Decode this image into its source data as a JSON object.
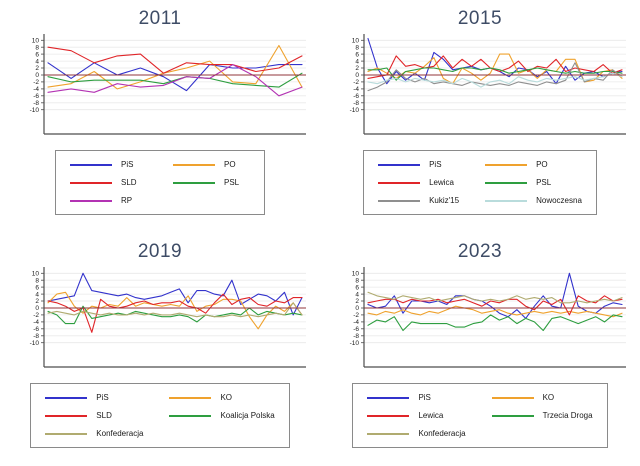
{
  "page": {
    "background": "#ffffff"
  },
  "style": {
    "title_color": "#3e4c66",
    "axis_color": "#4d4d4d",
    "grid_color": "#e9e9e9",
    "tick_label_color": "#1a1a1a",
    "zero_line_color": "#90353b",
    "legend_border_color": "#8a8a8a"
  },
  "chart_data": [
    {
      "type": "line",
      "title": "2011",
      "ylim": [
        -10,
        10
      ],
      "yticks": [
        10,
        8,
        6,
        4,
        2,
        0,
        -2,
        -4,
        -6,
        -8,
        -10
      ],
      "xlabel": "",
      "ylabel": "",
      "x_tick_labels_visible": false,
      "grid": true,
      "zero_reference_line": 0,
      "legend_position": "bottom",
      "legend_columns": 2,
      "series": [
        {
          "name": "PiS",
          "color": "#3333cc",
          "values": [
            3.5,
            -1,
            3.5,
            0,
            2,
            -0.5,
            -4.5,
            3,
            2,
            2,
            3,
            3
          ]
        },
        {
          "name": "PO",
          "color": "#efa22e",
          "values": [
            -3.5,
            -2.5,
            1,
            -4,
            -2,
            0.5,
            2,
            4,
            -2,
            -2.5,
            8.5,
            -3.5
          ]
        },
        {
          "name": "SLD",
          "color": "#e02529",
          "values": [
            8,
            7,
            3.5,
            5.5,
            6,
            0.5,
            3.5,
            3,
            3,
            1,
            2,
            5.5
          ]
        },
        {
          "name": "PSL",
          "color": "#2e9e40",
          "values": [
            -0.5,
            -2,
            -1.5,
            -1.5,
            -1.5,
            -2.5,
            -0.5,
            -1,
            -2.5,
            -3,
            -3.5,
            0.5
          ]
        },
        {
          "name": "RP",
          "color": "#b333b3",
          "values": [
            -5,
            -4,
            -5,
            -2.5,
            -3.5,
            -3,
            -0.5,
            -1,
            3,
            -0.5,
            -6,
            -3.5
          ]
        }
      ]
    },
    {
      "type": "line",
      "title": "2015",
      "ylim": [
        -10,
        10
      ],
      "yticks": [
        10,
        8,
        6,
        4,
        2,
        0,
        -2,
        -4,
        -6,
        -8,
        -10
      ],
      "xlabel": "",
      "ylabel": "",
      "x_tick_labels_visible": false,
      "grid": true,
      "zero_reference_line": 0,
      "legend_position": "bottom",
      "legend_columns": 2,
      "series": [
        {
          "name": "PiS",
          "color": "#3333cc",
          "values": [
            10.5,
            2,
            -2.5,
            1,
            -1.5,
            0.5,
            -1.5,
            6.5,
            4.5,
            1.5,
            2,
            2.5,
            1.5,
            2,
            1,
            -0.5,
            2,
            1.5,
            -0.5,
            1,
            -2.5,
            2.5,
            -1.5,
            0.5,
            1,
            -0.5,
            0.5,
            1
          ]
        },
        {
          "name": "PO",
          "color": "#efa22e",
          "values": [
            1,
            2,
            0.5,
            -1,
            1,
            0.5,
            2.5,
            5,
            -1,
            -2.5,
            2,
            0.5,
            -1.5,
            0.5,
            6,
            6,
            0.5,
            1.5,
            -1,
            1.5,
            1,
            4.5,
            4.5,
            -2,
            -1.5,
            1,
            1.5,
            -1
          ]
        },
        {
          "name": "Lewica",
          "color": "#e02529",
          "values": [
            -1,
            -0.5,
            0,
            5.5,
            2.5,
            3,
            2,
            2.5,
            5.5,
            2,
            4.5,
            2.5,
            4.5,
            2,
            1,
            2,
            4,
            1,
            2.5,
            2,
            4.5,
            1,
            2,
            1.5,
            1,
            3,
            0.5,
            1.5
          ]
        },
        {
          "name": "PSL",
          "color": "#2e9e40",
          "values": [
            1.5,
            1.5,
            2,
            -1.5,
            1,
            1.5,
            2,
            2,
            1.5,
            1,
            2,
            2,
            1.5,
            2,
            1.5,
            0.5,
            1,
            1.5,
            2,
            1.5,
            1,
            0.5,
            1,
            0.5,
            0.5,
            1,
            1,
            0.5
          ]
        },
        {
          "name": "Kukiz'15",
          "color": "#8f8f8f",
          "values": [
            -4.5,
            -3.5,
            -2,
            1.5,
            -1,
            -2,
            -1,
            -2.5,
            -2,
            -2.5,
            -3,
            -2,
            -2.5,
            -3,
            -2.5,
            -3,
            -2,
            -2.5,
            -3,
            -2,
            -2.5,
            -1.5,
            3.5,
            -2,
            -1,
            -1.5,
            1.5,
            -0.5
          ]
        },
        {
          "name": "Nowoczesna",
          "color": "#b9dcdc",
          "values": [
            -2,
            -2.5,
            -1.5,
            -1,
            -2,
            -1,
            -1.5,
            -2,
            -1.5,
            -2.5,
            -1,
            -2,
            -3.5,
            -2,
            -1.5,
            -2.5,
            -0.5,
            -1.5,
            -2,
            -1,
            -1.5,
            -1,
            -0.5,
            -1.5,
            -1,
            -0.5,
            0.5,
            -0.5
          ]
        }
      ]
    },
    {
      "type": "line",
      "title": "2019",
      "ylim": [
        -10,
        10
      ],
      "yticks": [
        10,
        8,
        6,
        4,
        2,
        0,
        -2,
        -4,
        -6,
        -8,
        -10
      ],
      "xlabel": "",
      "ylabel": "",
      "x_tick_labels_visible": false,
      "grid": true,
      "zero_reference_line": 0,
      "legend_position": "bottom",
      "legend_columns": 2,
      "series": [
        {
          "name": "PiS",
          "color": "#3333cc",
          "values": [
            2,
            2.5,
            3,
            3.5,
            10,
            5,
            4.5,
            4,
            3.5,
            4,
            3,
            2.5,
            3,
            3.5,
            4.5,
            5.5,
            1.5,
            5,
            5,
            4,
            3.5,
            8,
            1,
            2.5,
            4,
            3.5,
            2,
            4.5,
            -2,
            3
          ]
        },
        {
          "name": "KO",
          "color": "#efa22e",
          "values": [
            1.5,
            4,
            4.5,
            0.5,
            -1.5,
            0.5,
            0,
            1,
            0.5,
            3,
            0.5,
            1.5,
            1,
            0.5,
            1,
            0.5,
            3.5,
            -1,
            0.5,
            1,
            2.5,
            2.5,
            2,
            -2.5,
            -6,
            -2,
            0.5,
            -1,
            1.5,
            -2
          ]
        },
        {
          "name": "SLD",
          "color": "#e02529",
          "values": [
            2,
            1.5,
            0.5,
            -1,
            0,
            -7,
            2.5,
            0.5,
            0,
            0.5,
            1.5,
            2,
            1,
            1.5,
            1.5,
            2,
            0.5,
            0,
            -1.5,
            1.5,
            4,
            1,
            2.5,
            3,
            1,
            0.5,
            2,
            1.5,
            3,
            3
          ]
        },
        {
          "name": "Koalicja Polska",
          "color": "#2e9e40",
          "values": [
            -1,
            -2,
            -4.5,
            -4.5,
            0.5,
            -3,
            -2.5,
            -2,
            -1.5,
            -2,
            -1,
            -1.5,
            -2,
            -2.5,
            -2.5,
            -2,
            -2.5,
            -4,
            -2,
            -2.5,
            -2,
            -1.5,
            -2,
            0,
            -2,
            -1,
            -1.5,
            -2,
            -1.5,
            -2
          ]
        },
        {
          "name": "Konfederacja",
          "color": "#b0ab70",
          "values": [
            -1.5,
            -1,
            -1.5,
            -2,
            -1,
            -1.5,
            -2,
            -1.5,
            -2,
            -2,
            -1.5,
            -2,
            -1.5,
            -2,
            -2,
            -1.5,
            -2,
            -2.5,
            -2,
            -2.5,
            -2.5,
            -2,
            -2.5,
            -2,
            -2.5,
            -2,
            -1.5,
            -2,
            1.5,
            -2
          ]
        }
      ]
    },
    {
      "type": "line",
      "title": "2023",
      "ylim": [
        -10,
        10
      ],
      "yticks": [
        10,
        8,
        6,
        4,
        2,
        0,
        -2,
        -4,
        -6,
        -8,
        -10
      ],
      "xlabel": "",
      "ylabel": "",
      "x_tick_labels_visible": false,
      "grid": true,
      "zero_reference_line": 0,
      "legend_position": "bottom",
      "legend_columns": 2,
      "series": [
        {
          "name": "PiS",
          "color": "#3333cc",
          "values": [
            1,
            0,
            0.5,
            3.5,
            -1.5,
            2,
            2,
            1.5,
            2,
            1,
            3.5,
            3.5,
            2.5,
            2,
            0.5,
            -1.5,
            -2.5,
            -0.5,
            -3,
            0.5,
            3.5,
            0.5,
            0,
            10,
            0.5,
            -1,
            -1.5,
            0.5,
            1.5,
            1
          ]
        },
        {
          "name": "KO",
          "color": "#efa22e",
          "values": [
            -1.5,
            -2,
            -1,
            -1.5,
            -0.5,
            -1.5,
            -2,
            -1,
            -1.5,
            -0.5,
            0.5,
            0,
            -0.5,
            -1.5,
            -1,
            -0.5,
            -1.5,
            -2,
            -1.5,
            -1,
            -1.5,
            -1,
            -1.5,
            -1,
            -1.5,
            -1,
            -1.5,
            -2,
            -2.5,
            -1.5
          ]
        },
        {
          "name": "Lewica",
          "color": "#e02529",
          "values": [
            1.5,
            2,
            2.5,
            2.5,
            1.5,
            2.5,
            2,
            2,
            2.5,
            1.5,
            2,
            2.5,
            1.5,
            0.5,
            2,
            1.5,
            2.5,
            2.5,
            0.5,
            -0.5,
            2,
            1,
            2.5,
            -2,
            3.5,
            2,
            1.5,
            3.5,
            2,
            2.5
          ]
        },
        {
          "name": "Trzecia Droga",
          "color": "#2e9e40",
          "values": [
            -5,
            -3.5,
            -4,
            -2.5,
            -6.5,
            -4,
            -4.5,
            -4.5,
            -4.5,
            -4.5,
            -5.5,
            -5.5,
            -4.5,
            -4,
            -2,
            -3.5,
            -2.5,
            -4.5,
            -3,
            -4,
            -6.5,
            -3,
            -2.5,
            -3.5,
            -4.5,
            -3.5,
            -2.5,
            -4,
            -2,
            -2.5
          ]
        },
        {
          "name": "Konfederacja",
          "color": "#b0ab70",
          "values": [
            4.5,
            3.5,
            3,
            2.5,
            3.5,
            3,
            2.5,
            3,
            2,
            2.5,
            3,
            3.5,
            2.5,
            2,
            2.5,
            2,
            2.5,
            3.5,
            2.5,
            3,
            2.5,
            3,
            1.5,
            1.5,
            2,
            1.5,
            2,
            2.5,
            2,
            3
          ]
        }
      ]
    }
  ]
}
